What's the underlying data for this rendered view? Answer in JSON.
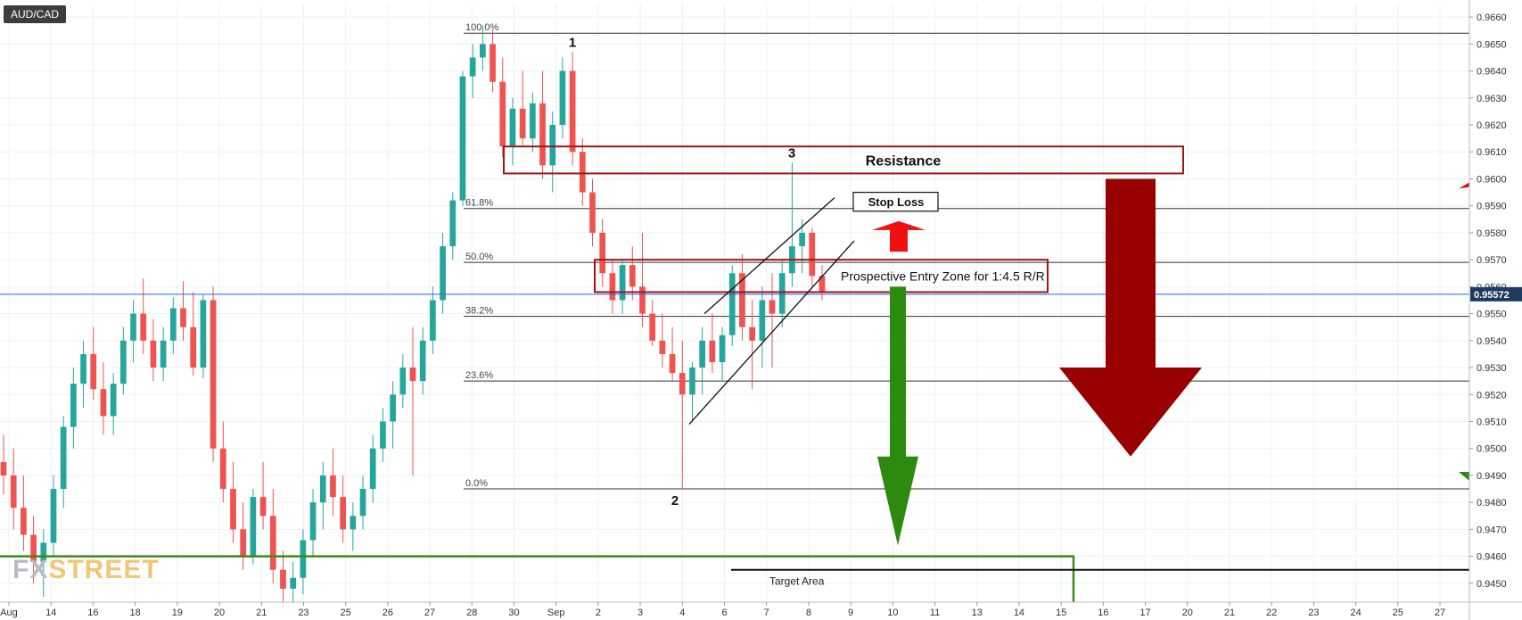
{
  "ticker": "AUD/CAD",
  "watermark": {
    "a": "FX",
    "b": "STREET"
  },
  "chart_data": {
    "type": "candlestick",
    "y_axis": {
      "side": "right",
      "range": [
        0.9443,
        0.9665
      ],
      "ticks": [
        "0.9450",
        "0.9460",
        "0.9470",
        "0.9480",
        "0.9490",
        "0.9500",
        "0.9510",
        "0.9520",
        "0.9530",
        "0.9540",
        "0.9550",
        "0.9560",
        "0.9570",
        "0.9580",
        "0.9590",
        "0.9600",
        "0.9610",
        "0.9620",
        "0.9630",
        "0.9640",
        "0.9650",
        "0.9660"
      ],
      "current_price_label": "0.95572",
      "current_price": 0.95572
    },
    "x_axis": {
      "ticks": [
        "Aug",
        "14",
        "16",
        "18",
        "19",
        "20",
        "21",
        "23",
        "25",
        "26",
        "27",
        "28",
        "30",
        "Sep",
        "2",
        "3",
        "4",
        "6",
        "7",
        "8",
        "9",
        "10",
        "11",
        "13",
        "14",
        "15",
        "16",
        "17",
        "20",
        "21",
        "22",
        "23",
        "24",
        "25",
        "27"
      ]
    },
    "fibonacci": [
      {
        "label": "100.0%",
        "value": 0.9654
      },
      {
        "label": "61.8%",
        "value": 0.9589
      },
      {
        "label": "50.0%",
        "value": 0.9569
      },
      {
        "label": "38.2%",
        "value": 0.9549
      },
      {
        "label": "23.6%",
        "value": 0.9525
      },
      {
        "label": "0.0%",
        "value": 0.9485
      }
    ],
    "annotations": {
      "resistance": "Resistance",
      "stop_loss": "Stop Loss",
      "entry_zone": "Prospective Entry Zone for 1:4.5 R/R",
      "target": "Target Area",
      "wave_1": "1",
      "wave_2": "2",
      "wave_3": "3"
    },
    "colors": {
      "up": "#26a69a",
      "down": "#ef5350",
      "box": "#a01616",
      "big_arrow": "#990000",
      "green_arrow": "#2c8a0e",
      "red_arrow": "#ee1111",
      "target_line": "#3a8a1a",
      "price_line": "#2962ff"
    },
    "candles": [
      {
        "o": 0.9495,
        "h": 0.9505,
        "l": 0.9483,
        "c": 0.949
      },
      {
        "o": 0.949,
        "h": 0.95,
        "l": 0.947,
        "c": 0.9478
      },
      {
        "o": 0.9478,
        "h": 0.949,
        "l": 0.9462,
        "c": 0.9468
      },
      {
        "o": 0.9468,
        "h": 0.9475,
        "l": 0.945,
        "c": 0.9458
      },
      {
        "o": 0.9458,
        "h": 0.947,
        "l": 0.9445,
        "c": 0.9465
      },
      {
        "o": 0.9465,
        "h": 0.949,
        "l": 0.946,
        "c": 0.9485
      },
      {
        "o": 0.9485,
        "h": 0.9512,
        "l": 0.9478,
        "c": 0.9508
      },
      {
        "o": 0.9508,
        "h": 0.953,
        "l": 0.95,
        "c": 0.9524
      },
      {
        "o": 0.9524,
        "h": 0.954,
        "l": 0.9515,
        "c": 0.9535
      },
      {
        "o": 0.9535,
        "h": 0.9545,
        "l": 0.9518,
        "c": 0.9522
      },
      {
        "o": 0.9522,
        "h": 0.9532,
        "l": 0.9505,
        "c": 0.9512
      },
      {
        "o": 0.9512,
        "h": 0.9528,
        "l": 0.9505,
        "c": 0.9524
      },
      {
        "o": 0.9524,
        "h": 0.9545,
        "l": 0.952,
        "c": 0.954
      },
      {
        "o": 0.954,
        "h": 0.9555,
        "l": 0.9532,
        "c": 0.955
      },
      {
        "o": 0.955,
        "h": 0.9563,
        "l": 0.9535,
        "c": 0.954
      },
      {
        "o": 0.954,
        "h": 0.9548,
        "l": 0.9525,
        "c": 0.953
      },
      {
        "o": 0.953,
        "h": 0.9545,
        "l": 0.9525,
        "c": 0.954
      },
      {
        "o": 0.954,
        "h": 0.9556,
        "l": 0.9535,
        "c": 0.9552
      },
      {
        "o": 0.9552,
        "h": 0.9562,
        "l": 0.954,
        "c": 0.9545
      },
      {
        "o": 0.9545,
        "h": 0.9558,
        "l": 0.9527,
        "c": 0.953
      },
      {
        "o": 0.953,
        "h": 0.9557,
        "l": 0.9526,
        "c": 0.9555
      },
      {
        "o": 0.9555,
        "h": 0.956,
        "l": 0.9495,
        "c": 0.95
      },
      {
        "o": 0.95,
        "h": 0.951,
        "l": 0.948,
        "c": 0.9485
      },
      {
        "o": 0.9485,
        "h": 0.9495,
        "l": 0.9465,
        "c": 0.947
      },
      {
        "o": 0.947,
        "h": 0.948,
        "l": 0.9455,
        "c": 0.946
      },
      {
        "o": 0.946,
        "h": 0.9485,
        "l": 0.9457,
        "c": 0.9482
      },
      {
        "o": 0.9482,
        "h": 0.9495,
        "l": 0.947,
        "c": 0.9475
      },
      {
        "o": 0.9475,
        "h": 0.9485,
        "l": 0.945,
        "c": 0.9455
      },
      {
        "o": 0.9455,
        "h": 0.9462,
        "l": 0.9443,
        "c": 0.9448
      },
      {
        "o": 0.9448,
        "h": 0.9458,
        "l": 0.9443,
        "c": 0.9452
      },
      {
        "o": 0.9452,
        "h": 0.947,
        "l": 0.9446,
        "c": 0.9466
      },
      {
        "o": 0.9466,
        "h": 0.9485,
        "l": 0.946,
        "c": 0.948
      },
      {
        "o": 0.948,
        "h": 0.9495,
        "l": 0.947,
        "c": 0.949
      },
      {
        "o": 0.949,
        "h": 0.95,
        "l": 0.9475,
        "c": 0.9482
      },
      {
        "o": 0.9482,
        "h": 0.949,
        "l": 0.9465,
        "c": 0.947
      },
      {
        "o": 0.947,
        "h": 0.948,
        "l": 0.9462,
        "c": 0.9475
      },
      {
        "o": 0.9475,
        "h": 0.949,
        "l": 0.947,
        "c": 0.9485
      },
      {
        "o": 0.9485,
        "h": 0.9505,
        "l": 0.948,
        "c": 0.95
      },
      {
        "o": 0.95,
        "h": 0.9515,
        "l": 0.9495,
        "c": 0.951
      },
      {
        "o": 0.951,
        "h": 0.9525,
        "l": 0.95,
        "c": 0.952
      },
      {
        "o": 0.952,
        "h": 0.9535,
        "l": 0.9515,
        "c": 0.953
      },
      {
        "o": 0.953,
        "h": 0.9545,
        "l": 0.949,
        "c": 0.9525
      },
      {
        "o": 0.9525,
        "h": 0.9545,
        "l": 0.952,
        "c": 0.954
      },
      {
        "o": 0.954,
        "h": 0.956,
        "l": 0.9535,
        "c": 0.9555
      },
      {
        "o": 0.9555,
        "h": 0.958,
        "l": 0.955,
        "c": 0.9575
      },
      {
        "o": 0.9575,
        "h": 0.9595,
        "l": 0.957,
        "c": 0.9592
      },
      {
        "o": 0.9592,
        "h": 0.964,
        "l": 0.959,
        "c": 0.9638
      },
      {
        "o": 0.9638,
        "h": 0.965,
        "l": 0.963,
        "c": 0.9645
      },
      {
        "o": 0.9645,
        "h": 0.9657,
        "l": 0.964,
        "c": 0.965
      },
      {
        "o": 0.965,
        "h": 0.9655,
        "l": 0.9632,
        "c": 0.9636
      },
      {
        "o": 0.9636,
        "h": 0.9645,
        "l": 0.9608,
        "c": 0.9612
      },
      {
        "o": 0.9612,
        "h": 0.963,
        "l": 0.9605,
        "c": 0.9626
      },
      {
        "o": 0.9626,
        "h": 0.964,
        "l": 0.9612,
        "c": 0.9615
      },
      {
        "o": 0.9615,
        "h": 0.9632,
        "l": 0.961,
        "c": 0.9628
      },
      {
        "o": 0.9628,
        "h": 0.964,
        "l": 0.96,
        "c": 0.9605
      },
      {
        "o": 0.9605,
        "h": 0.9625,
        "l": 0.9595,
        "c": 0.962
      },
      {
        "o": 0.962,
        "h": 0.9645,
        "l": 0.9615,
        "c": 0.964
      },
      {
        "o": 0.964,
        "h": 0.9647,
        "l": 0.9605,
        "c": 0.961
      },
      {
        "o": 0.961,
        "h": 0.9615,
        "l": 0.959,
        "c": 0.9595
      },
      {
        "o": 0.9595,
        "h": 0.96,
        "l": 0.9575,
        "c": 0.958
      },
      {
        "o": 0.958,
        "h": 0.9585,
        "l": 0.956,
        "c": 0.9565
      },
      {
        "o": 0.9565,
        "h": 0.957,
        "l": 0.955,
        "c": 0.9555
      },
      {
        "o": 0.9555,
        "h": 0.957,
        "l": 0.955,
        "c": 0.9568
      },
      {
        "o": 0.9568,
        "h": 0.9575,
        "l": 0.9555,
        "c": 0.956
      },
      {
        "o": 0.956,
        "h": 0.958,
        "l": 0.9545,
        "c": 0.955
      },
      {
        "o": 0.955,
        "h": 0.9555,
        "l": 0.9538,
        "c": 0.954
      },
      {
        "o": 0.954,
        "h": 0.955,
        "l": 0.953,
        "c": 0.9535
      },
      {
        "o": 0.9535,
        "h": 0.9545,
        "l": 0.9525,
        "c": 0.9528
      },
      {
        "o": 0.9528,
        "h": 0.954,
        "l": 0.9485,
        "c": 0.952
      },
      {
        "o": 0.952,
        "h": 0.9532,
        "l": 0.951,
        "c": 0.953
      },
      {
        "o": 0.953,
        "h": 0.9545,
        "l": 0.952,
        "c": 0.954
      },
      {
        "o": 0.954,
        "h": 0.955,
        "l": 0.9528,
        "c": 0.9532
      },
      {
        "o": 0.9532,
        "h": 0.9545,
        "l": 0.9525,
        "c": 0.9542
      },
      {
        "o": 0.9542,
        "h": 0.9568,
        "l": 0.9538,
        "c": 0.9565
      },
      {
        "o": 0.9565,
        "h": 0.9572,
        "l": 0.954,
        "c": 0.9545
      },
      {
        "o": 0.9545,
        "h": 0.9555,
        "l": 0.9522,
        "c": 0.954
      },
      {
        "o": 0.954,
        "h": 0.956,
        "l": 0.953,
        "c": 0.9555
      },
      {
        "o": 0.9555,
        "h": 0.9565,
        "l": 0.953,
        "c": 0.955
      },
      {
        "o": 0.955,
        "h": 0.957,
        "l": 0.9545,
        "c": 0.9565
      },
      {
        "o": 0.9565,
        "h": 0.9606,
        "l": 0.956,
        "c": 0.9575
      },
      {
        "o": 0.9575,
        "h": 0.9585,
        "l": 0.9565,
        "c": 0.958
      },
      {
        "o": 0.958,
        "h": 0.9582,
        "l": 0.956,
        "c": 0.9564
      },
      {
        "o": 0.9564,
        "h": 0.9568,
        "l": 0.9555,
        "c": 0.9558
      }
    ]
  }
}
